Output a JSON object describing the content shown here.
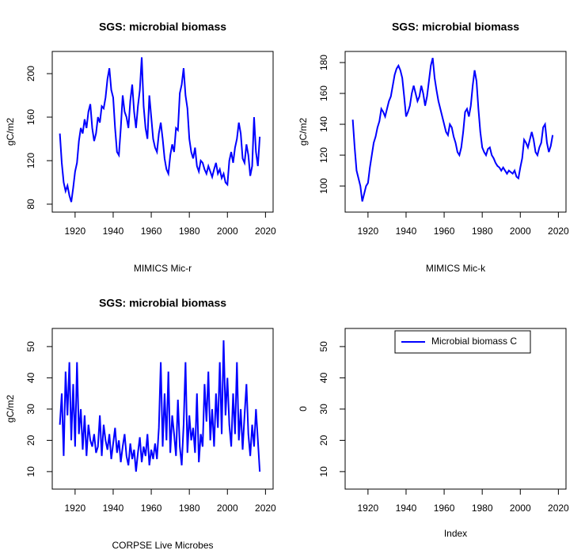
{
  "chart_data": [
    {
      "type": "line",
      "title": "SGS: microbial biomass",
      "xlabel": "MIMICS Mic-r",
      "ylabel": "gC/m2",
      "color": "#0000ff",
      "x": [
        1912,
        1913,
        1914,
        1915,
        1916,
        1917,
        1918,
        1919,
        1920,
        1921,
        1922,
        1923,
        1924,
        1925,
        1926,
        1927,
        1928,
        1929,
        1930,
        1931,
        1932,
        1933,
        1934,
        1935,
        1936,
        1937,
        1938,
        1939,
        1940,
        1941,
        1942,
        1943,
        1944,
        1945,
        1946,
        1947,
        1948,
        1949,
        1950,
        1951,
        1952,
        1953,
        1954,
        1955,
        1956,
        1957,
        1958,
        1959,
        1960,
        1961,
        1962,
        1963,
        1964,
        1965,
        1966,
        1967,
        1968,
        1969,
        1970,
        1971,
        1972,
        1973,
        1974,
        1975,
        1976,
        1977,
        1978,
        1979,
        1980,
        1981,
        1982,
        1983,
        1984,
        1985,
        1986,
        1987,
        1988,
        1989,
        1990,
        1991,
        1992,
        1993,
        1994,
        1995,
        1996,
        1997,
        1998,
        1999,
        2000,
        2001,
        2002,
        2003,
        2004,
        2005,
        2006,
        2007,
        2008,
        2009,
        2010,
        2011,
        2012,
        2013,
        2014,
        2015,
        2016,
        2017
      ],
      "values": [
        145,
        118,
        100,
        92,
        97,
        88,
        82,
        95,
        110,
        118,
        138,
        150,
        145,
        158,
        150,
        165,
        172,
        150,
        138,
        145,
        160,
        155,
        170,
        168,
        178,
        195,
        205,
        185,
        178,
        150,
        128,
        125,
        150,
        180,
        165,
        160,
        150,
        175,
        190,
        165,
        150,
        170,
        185,
        215,
        170,
        150,
        140,
        180,
        160,
        140,
        132,
        128,
        145,
        155,
        140,
        122,
        112,
        108,
        125,
        135,
        128,
        150,
        148,
        182,
        190,
        205,
        180,
        168,
        140,
        128,
        122,
        132,
        115,
        110,
        120,
        118,
        112,
        108,
        115,
        110,
        105,
        112,
        118,
        108,
        112,
        104,
        108,
        100,
        98,
        120,
        128,
        118,
        132,
        140,
        155,
        145,
        122,
        118,
        135,
        125,
        106,
        115,
        160,
        128,
        115,
        142
      ],
      "xlim": [
        1908,
        2024
      ],
      "xticks": [
        1920,
        1940,
        1960,
        1980,
        2000,
        2020
      ],
      "ylim": [
        72.7,
        220.4
      ],
      "yticks": [
        80,
        120,
        160,
        200
      ]
    },
    {
      "type": "line",
      "title": "SGS: microbial biomass",
      "xlabel": "MIMICS Mic-k",
      "ylabel": "gC/m2",
      "color": "#0000ff",
      "x": [
        1912,
        1913,
        1914,
        1915,
        1916,
        1917,
        1918,
        1919,
        1920,
        1921,
        1922,
        1923,
        1924,
        1925,
        1926,
        1927,
        1928,
        1929,
        1930,
        1931,
        1932,
        1933,
        1934,
        1935,
        1936,
        1937,
        1938,
        1939,
        1940,
        1941,
        1942,
        1943,
        1944,
        1945,
        1946,
        1947,
        1948,
        1949,
        1950,
        1951,
        1952,
        1953,
        1954,
        1955,
        1956,
        1957,
        1958,
        1959,
        1960,
        1961,
        1962,
        1963,
        1964,
        1965,
        1966,
        1967,
        1968,
        1969,
        1970,
        1971,
        1972,
        1973,
        1974,
        1975,
        1976,
        1977,
        1978,
        1979,
        1980,
        1981,
        1982,
        1983,
        1984,
        1985,
        1986,
        1987,
        1988,
        1989,
        1990,
        1991,
        1992,
        1993,
        1994,
        1995,
        1996,
        1997,
        1998,
        1999,
        2000,
        2001,
        2002,
        2003,
        2004,
        2005,
        2006,
        2007,
        2008,
        2009,
        2010,
        2011,
        2012,
        2013,
        2014,
        2015,
        2016,
        2017
      ],
      "values": [
        143,
        125,
        110,
        105,
        100,
        90,
        95,
        100,
        102,
        112,
        120,
        128,
        132,
        138,
        142,
        150,
        148,
        145,
        150,
        155,
        158,
        165,
        172,
        176,
        178,
        175,
        170,
        158,
        145,
        148,
        152,
        160,
        165,
        160,
        155,
        158,
        165,
        160,
        152,
        158,
        168,
        178,
        183,
        170,
        162,
        155,
        150,
        145,
        140,
        135,
        133,
        140,
        138,
        132,
        128,
        122,
        120,
        125,
        135,
        148,
        150,
        145,
        152,
        165,
        175,
        168,
        150,
        135,
        125,
        122,
        120,
        124,
        125,
        120,
        118,
        115,
        113,
        112,
        110,
        112,
        110,
        108,
        110,
        109,
        108,
        110,
        106,
        105,
        112,
        118,
        130,
        128,
        125,
        130,
        135,
        130,
        122,
        120,
        125,
        128,
        138,
        140,
        128,
        122,
        126,
        133
      ],
      "xlim": [
        1908,
        2024
      ],
      "xticks": [
        1920,
        1940,
        1960,
        1980,
        2000,
        2020
      ],
      "ylim": [
        83.1,
        187.2
      ],
      "yticks": [
        100,
        120,
        140,
        160,
        180
      ]
    },
    {
      "type": "line",
      "title": "SGS: microbial biomass",
      "xlabel": "CORPSE Live Microbes",
      "ylabel": "gC/m2",
      "color": "#0000ff",
      "x": [
        1912,
        1913,
        1914,
        1915,
        1916,
        1917,
        1918,
        1919,
        1920,
        1921,
        1922,
        1923,
        1924,
        1925,
        1926,
        1927,
        1928,
        1929,
        1930,
        1931,
        1932,
        1933,
        1934,
        1935,
        1936,
        1937,
        1938,
        1939,
        1940,
        1941,
        1942,
        1943,
        1944,
        1945,
        1946,
        1947,
        1948,
        1949,
        1950,
        1951,
        1952,
        1953,
        1954,
        1955,
        1956,
        1957,
        1958,
        1959,
        1960,
        1961,
        1962,
        1963,
        1964,
        1965,
        1966,
        1967,
        1968,
        1969,
        1970,
        1971,
        1972,
        1973,
        1974,
        1975,
        1976,
        1977,
        1978,
        1979,
        1980,
        1981,
        1982,
        1983,
        1984,
        1985,
        1986,
        1987,
        1988,
        1989,
        1990,
        1991,
        1992,
        1993,
        1994,
        1995,
        1996,
        1997,
        1998,
        1999,
        2000,
        2001,
        2002,
        2003,
        2004,
        2005,
        2006,
        2007,
        2008,
        2009,
        2010,
        2011,
        2012,
        2013,
        2014,
        2015,
        2016,
        2017
      ],
      "values": [
        25,
        35,
        15,
        42,
        28,
        45,
        20,
        38,
        18,
        45,
        22,
        30,
        17,
        28,
        15,
        25,
        20,
        18,
        22,
        16,
        18,
        28,
        15,
        25,
        20,
        17,
        22,
        14,
        19,
        24,
        16,
        20,
        13,
        18,
        22,
        15,
        12,
        19,
        14,
        17,
        10,
        16,
        21,
        13,
        18,
        15,
        22,
        12,
        17,
        14,
        19,
        14,
        24,
        45,
        18,
        35,
        20,
        42,
        16,
        28,
        22,
        15,
        33,
        18,
        12,
        25,
        45,
        16,
        28,
        20,
        24,
        16,
        35,
        13,
        22,
        18,
        38,
        26,
        42,
        20,
        30,
        18,
        35,
        24,
        45,
        22,
        52,
        28,
        40,
        25,
        18,
        35,
        22,
        45,
        20,
        30,
        17,
        28,
        38,
        22,
        15,
        25,
        18,
        30,
        20,
        10
      ],
      "xlim": [
        1908,
        2024
      ],
      "xticks": [
        1920,
        1940,
        1960,
        1980,
        2000,
        2020
      ],
      "ylim": [
        4.4,
        55.8
      ],
      "yticks": [
        10,
        20,
        30,
        40,
        50
      ]
    },
    {
      "type": "line",
      "xlabel": "Index",
      "ylabel": "0",
      "x": [],
      "series": [
        {
          "name": "Microbial biomass C",
          "color": "#0000ff",
          "values": []
        }
      ],
      "legend": "top",
      "xlim": [
        1908,
        2024
      ],
      "xticks": [
        1920,
        1940,
        1960,
        1980,
        2000,
        2020
      ],
      "ylim": [
        4.4,
        55.8
      ],
      "yticks": [
        10,
        20,
        30,
        40,
        50
      ]
    }
  ]
}
